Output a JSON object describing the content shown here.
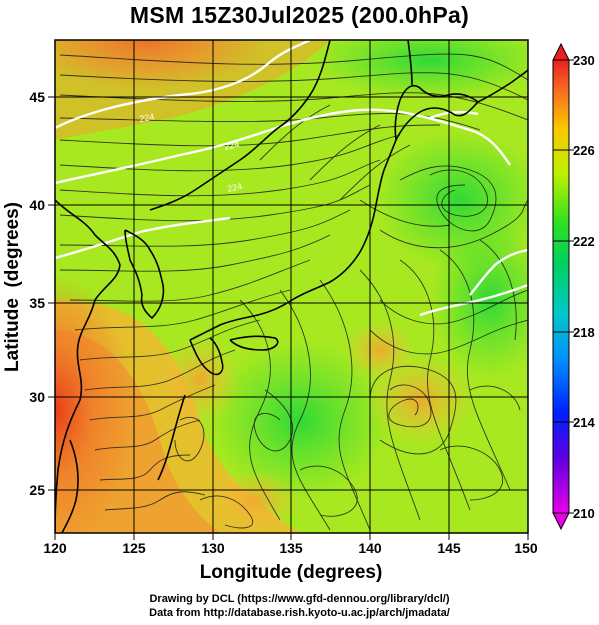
{
  "title": "MSM 15Z30Jul2025 (200.0hPa)",
  "xlabel": "Longitude (degrees)",
  "ylabel": "Latitude  (degrees)",
  "xticks": [
    "120",
    "125",
    "130",
    "135",
    "140",
    "145",
    "150"
  ],
  "yticks": [
    "25",
    "30",
    "35",
    "40",
    "45"
  ],
  "colorbar": {
    "ticks": [
      "210",
      "214",
      "218",
      "222",
      "226",
      "230"
    ],
    "min": 210,
    "max": 230
  },
  "map_extent": {
    "lon": [
      120,
      150
    ],
    "lat": [
      22.4,
      47.6
    ]
  },
  "contour_labels": [
    "224",
    "224",
    "224"
  ],
  "footer": {
    "line1": "Drawing by DCL (https://www.gfd-dennou.org/library/dcl/)",
    "line2": "Data from http://database.rish.kyoto-u.ac.jp/arch/jmadata/"
  }
}
